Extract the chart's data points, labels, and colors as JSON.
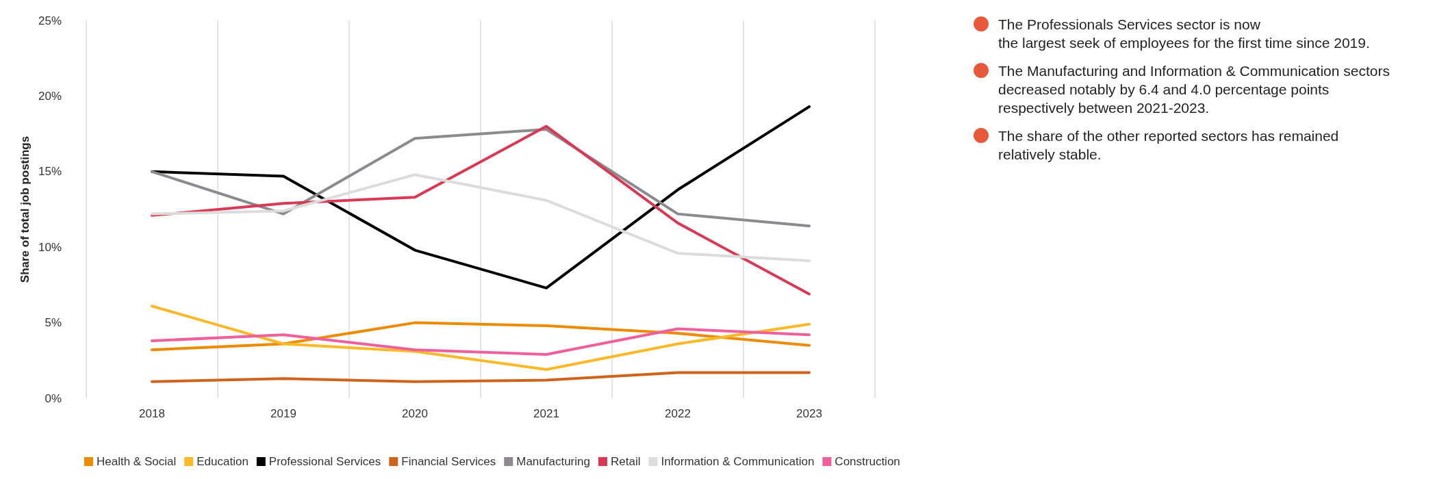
{
  "chart_data": {
    "type": "line",
    "ylabel": "Share of total job postings",
    "categories": [
      "2018",
      "2019",
      "2020",
      "2021",
      "2022",
      "2023"
    ],
    "series": [
      {
        "name": "Health & Social",
        "color": "#ec8b00",
        "values": [
          3.2,
          3.6,
          5.0,
          4.8,
          4.3,
          3.5
        ]
      },
      {
        "name": "Education",
        "color": "#fbb928",
        "values": [
          6.1,
          3.6,
          3.1,
          1.9,
          3.6,
          4.9
        ]
      },
      {
        "name": "Professional Services",
        "color": "#000000",
        "values": [
          15.0,
          14.7,
          9.8,
          7.3,
          13.8,
          19.3
        ]
      },
      {
        "name": "Financial Services",
        "color": "#d0631b",
        "values": [
          1.1,
          1.3,
          1.1,
          1.2,
          1.7,
          1.7
        ]
      },
      {
        "name": "Manufacturing",
        "color": "#8c8a8f",
        "values": [
          15.0,
          12.2,
          17.2,
          17.8,
          12.2,
          11.4
        ]
      },
      {
        "name": "Retail",
        "color": "#d93954",
        "values": [
          12.1,
          12.9,
          13.3,
          18.0,
          11.6,
          6.9
        ]
      },
      {
        "name": "Information & Communication",
        "color": "#dcdcdc",
        "values": [
          12.2,
          12.4,
          14.8,
          13.1,
          9.6,
          9.1
        ]
      },
      {
        "name": "Construction",
        "color": "#ef5f9b",
        "values": [
          3.8,
          4.2,
          3.2,
          2.9,
          4.6,
          4.2
        ]
      }
    ],
    "ylim": [
      0,
      25
    ],
    "yticks": [
      {
        "value": 0,
        "label": "0%"
      },
      {
        "value": 5,
        "label": "5%"
      },
      {
        "value": 10,
        "label": "10%"
      },
      {
        "value": 15,
        "label": "15%"
      },
      {
        "value": 20,
        "label": "20%"
      },
      {
        "value": 25,
        "label": "25%"
      }
    ],
    "grid": "x",
    "legend": "bottom left",
    "marker": "none",
    "line_style": "solid",
    "annotations": [
      "The Professionals Services sector is now\nthe largest seek of employees for the first time since 2019.",
      "The Manufacturing and Information & Communication sectors decreased notably by 6.4 and 4.0 percentage points respectively between 2021-2023.",
      "The share of the other reported sectors has remained relatively stable."
    ]
  }
}
